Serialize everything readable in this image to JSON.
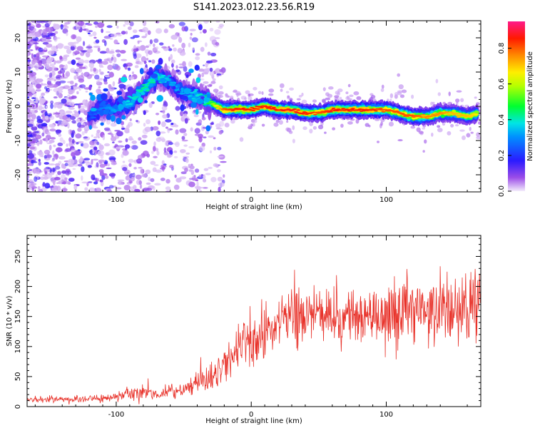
{
  "title": "S141.2023.012.23.56.R19",
  "colors": {
    "background": "#ffffff",
    "snr_line": "#e8322a",
    "frequency_track_core": "#e8322a",
    "noise_scatter": "#7a2fd6"
  },
  "chart_data": [
    {
      "type": "heatmap",
      "name": "spectrogram",
      "xlabel": "Height of straight line (km)",
      "ylabel": "Frequency (Hz)",
      "xlim": [
        -166,
        170
      ],
      "ylim": [
        -25,
        25
      ],
      "x_ticks": [
        -100,
        0,
        100
      ],
      "y_ticks": [
        -20,
        -10,
        0,
        10,
        20
      ],
      "grid": false,
      "colormap": "rainbow (purple -> blue -> cyan -> green -> yellow -> orange -> red -> magenta)",
      "colorbar": {
        "label": "Normalized spectral amplitude",
        "range": [
          0,
          0.95
        ],
        "ticks": [
          0.0,
          0.2,
          0.4,
          0.6,
          0.8
        ],
        "tick_labels": [
          "0.0",
          "0.2",
          "0.4",
          "0.6",
          "0.8"
        ]
      },
      "ridge": {
        "description_x": [
          -120,
          -110,
          -100,
          -90,
          -80,
          -70,
          -65,
          -60,
          -50,
          -40,
          -35,
          -30,
          -25,
          -20,
          -10,
          0,
          10,
          20,
          30,
          40,
          50,
          60,
          70,
          80,
          90,
          100,
          110,
          120,
          130,
          140,
          150,
          160,
          168
        ],
        "frequency_hz": [
          -3,
          0,
          -1,
          1,
          5,
          9,
          8,
          7,
          4,
          3,
          2,
          1,
          0,
          -1,
          -1,
          -1,
          0,
          -1,
          -1,
          -2,
          -2,
          -1,
          -1,
          -1,
          -1,
          -1,
          -2,
          -3,
          -3,
          -2,
          -2,
          -3,
          -2
        ],
        "amplitude": [
          0.25,
          0.3,
          0.35,
          0.4,
          0.45,
          0.45,
          0.4,
          0.35,
          0.35,
          0.4,
          0.45,
          0.55,
          0.7,
          0.85,
          0.9,
          0.9,
          0.9,
          0.9,
          0.92,
          0.9,
          0.85,
          0.9,
          0.9,
          0.9,
          0.88,
          0.85,
          0.85,
          0.85,
          0.8,
          0.8,
          0.75,
          0.75,
          0.7
        ]
      }
    },
    {
      "type": "line",
      "name": "snr",
      "xlabel": "Height of straight line (km)",
      "ylabel": "SNR (10 * v/v)",
      "xlim": [
        -166,
        170
      ],
      "ylim": [
        0,
        285
      ],
      "x_ticks": [
        -100,
        0,
        100
      ],
      "y_ticks": [
        0,
        50,
        100,
        150,
        200,
        250
      ],
      "grid": false,
      "envelope": {
        "x": [
          -166,
          -120,
          -100,
          -90,
          -80,
          -70,
          -60,
          -50,
          -40,
          -30,
          -20,
          -10,
          0,
          10,
          20,
          30,
          40,
          50,
          60,
          70,
          80,
          90,
          100,
          110,
          120,
          130,
          140,
          150,
          160,
          170
        ],
        "mean": [
          12,
          13,
          15,
          20,
          26,
          22,
          24,
          30,
          42,
          45,
          70,
          95,
          110,
          125,
          140,
          150,
          152,
          150,
          150,
          155,
          150,
          155,
          160,
          158,
          160,
          155,
          165,
          160,
          170,
          175
        ],
        "spread": [
          4,
          5,
          6,
          8,
          12,
          9,
          9,
          12,
          18,
          20,
          28,
          35,
          38,
          40,
          38,
          40,
          40,
          38,
          40,
          40,
          38,
          40,
          45,
          40,
          40,
          42,
          45,
          45,
          55,
          60
        ]
      }
    }
  ]
}
